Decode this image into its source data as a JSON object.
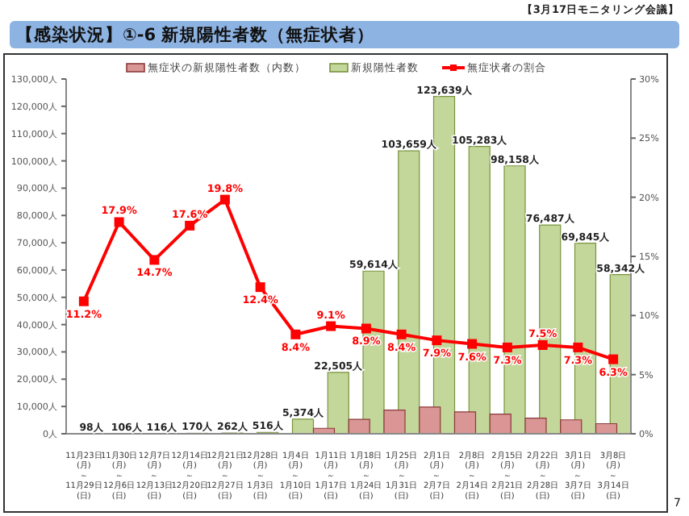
{
  "chart_data": {
    "type": "bar",
    "title": "【感染状況】①-6 新規陽性者数（無症状者）",
    "subtitle": "【3月17日モニタリング会議】",
    "annotations": [
      "7"
    ],
    "categories": [
      "11月23日\n(月)\n～\n11月29日\n(日)",
      "11月30日\n(月)\n～\n12月6日\n(日)",
      "12月7日\n(月)\n～\n12月13日\n(日)",
      "12月14日\n(月)\n～\n12月20日\n(日)",
      "12月21日\n(月)\n～\n12月27日\n(日)",
      "12月28日\n(月)\n～\n1月3日\n(日)",
      "1月4日\n(月)\n～\n1月10日\n(日)",
      "1月11日\n(月)\n～\n1月17日\n(日)",
      "1月18日\n(月)\n～\n1月24日\n(日)",
      "1月25日\n(月)\n～\n1月31日\n(日)",
      "2月1日\n(月)\n～\n2月7日\n(日)",
      "2月8日\n(月)\n～\n2月14日\n(日)",
      "2月15日\n(月)\n～\n2月21日\n(日)",
      "2月22日\n(月)\n～\n2月28日\n(日)",
      "3月1日\n(月)\n～\n3月7日\n(日)",
      "3月8日\n(月)\n～\n3月14日\n(日)"
    ],
    "series": [
      {
        "name": "無症状の新規陽性者数（内数）",
        "color": "#d99694",
        "values": [
          0,
          0,
          0,
          0,
          0,
          100,
          null,
          2000,
          5300,
          8700,
          9800,
          8000,
          7200,
          5700,
          5100,
          3700
        ]
      },
      {
        "name": "新規陽性者数",
        "color": "#c4d79b",
        "values": [
          98,
          106,
          116,
          170,
          262,
          516,
          5374,
          22505,
          59614,
          103659,
          123639,
          105283,
          98158,
          76487,
          69845,
          58342
        ],
        "value_labels": [
          "98人",
          "106人",
          "116人",
          "170人",
          "262人",
          "516人",
          "5,374人",
          "22,505人",
          "59,614人",
          "103,659人",
          "123,639人",
          "105,283人",
          "98,158人",
          "76,487人",
          "69,845人",
          "58,342人"
        ]
      },
      {
        "name": "無症状者の割合",
        "type": "line",
        "axis": "y2",
        "color": "#ff0000",
        "marker": "square",
        "line_style": "solid",
        "values": [
          11.2,
          17.9,
          14.7,
          17.6,
          19.8,
          12.4,
          8.4,
          9.1,
          8.9,
          8.4,
          7.9,
          7.6,
          7.3,
          7.5,
          7.3,
          6.3
        ],
        "value_labels": [
          "11.2%",
          "17.9%",
          "14.7%",
          "17.6%",
          "19.8%",
          "12.4%",
          "8.4%",
          "9.1%",
          "8.9%",
          "8.4%",
          "7.9%",
          "7.6%",
          "7.3%",
          "7.5%",
          "7.3%",
          "6.3%"
        ]
      }
    ],
    "ylim": [
      0,
      130000
    ],
    "yticks": [
      {
        "value": 0,
        "label": "0人"
      },
      {
        "value": 10000,
        "label": "10,000人"
      },
      {
        "value": 20000,
        "label": "20,000人"
      },
      {
        "value": 30000,
        "label": "30,000人"
      },
      {
        "value": 40000,
        "label": "40,000人"
      },
      {
        "value": 50000,
        "label": "50,000人"
      },
      {
        "value": 60000,
        "label": "60,000人"
      },
      {
        "value": 70000,
        "label": "70,000人"
      },
      {
        "value": 80000,
        "label": "80,000人"
      },
      {
        "value": 90000,
        "label": "90,000人"
      },
      {
        "value": 100000,
        "label": "100,000人"
      },
      {
        "value": 110000,
        "label": "110,000人"
      },
      {
        "value": 120000,
        "label": "120,000人"
      },
      {
        "value": 130000,
        "label": "130,000人"
      }
    ],
    "y2lim": [
      0,
      30
    ],
    "y2ticks": [
      {
        "value": 0,
        "label": "0%"
      },
      {
        "value": 5,
        "label": "5%"
      },
      {
        "value": 10,
        "label": "10%"
      },
      {
        "value": 15,
        "label": "15%"
      },
      {
        "value": 20,
        "label": "20%"
      },
      {
        "value": 25,
        "label": "25%"
      },
      {
        "value": 30,
        "label": "30%"
      }
    ],
    "legend": "top",
    "grid": false
  }
}
